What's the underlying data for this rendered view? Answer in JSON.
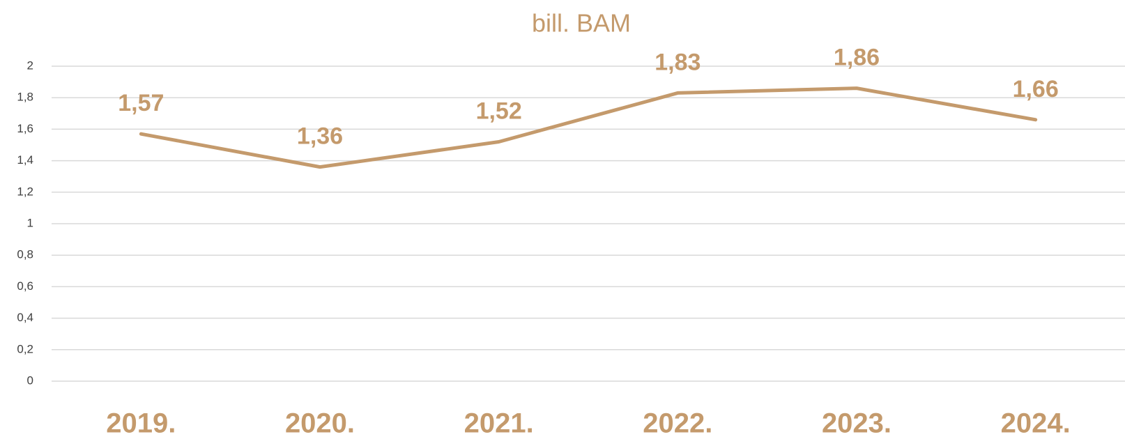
{
  "chart_data": {
    "type": "line",
    "title": "bill. BAM",
    "categories": [
      "2019.",
      "2020.",
      "2021.",
      "2022.",
      "2023.",
      "2024."
    ],
    "values": [
      1.57,
      1.36,
      1.52,
      1.83,
      1.86,
      1.66
    ],
    "value_labels": [
      "1,57",
      "1,36",
      "1,52",
      "1,83",
      "1,86",
      "1,66"
    ],
    "color": "#c49a6c",
    "ylim": [
      0,
      2
    ],
    "yticks": [
      0,
      {
        "value": 0.2,
        "label": "0,2"
      },
      {
        "value": 0.4,
        "label": "0,4"
      },
      {
        "value": 0.6,
        "label": "0,6"
      },
      {
        "value": 0.8,
        "label": "0,8"
      },
      1,
      {
        "value": 1.2,
        "label": "1,2"
      },
      {
        "value": 1.4,
        "label": "1,4"
      },
      {
        "value": 1.6,
        "label": "1,6"
      },
      {
        "value": 1.8,
        "label": "1,8"
      },
      2
    ],
    "grid": true
  }
}
